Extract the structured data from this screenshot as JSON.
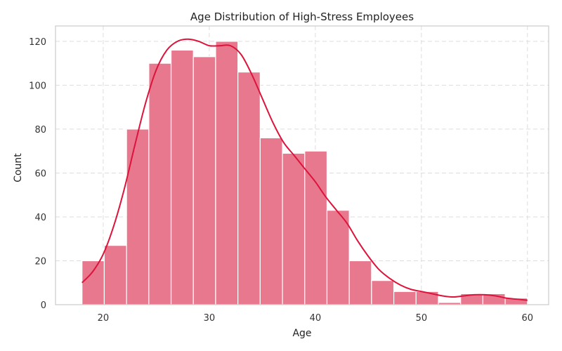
{
  "chart_data": {
    "type": "bar",
    "title": "Age Distribution of High-Stress Employees",
    "xlabel": "Age",
    "ylabel": "Count",
    "xlim": [
      15.5,
      62
    ],
    "ylim": [
      0,
      127
    ],
    "x_ticks": [
      20,
      30,
      40,
      50,
      60
    ],
    "y_ticks": [
      0,
      20,
      40,
      60,
      80,
      100,
      120
    ],
    "grid": true,
    "bin_edges": [
      18,
      20.1,
      22.2,
      24.3,
      26.4,
      28.5,
      30.6,
      32.7,
      34.8,
      36.9,
      39.0,
      41.1,
      43.2,
      45.3,
      47.4,
      49.5,
      51.6,
      53.7,
      55.8,
      57.9,
      60
    ],
    "values": [
      20,
      27,
      80,
      110,
      116,
      113,
      120,
      106,
      76,
      69,
      70,
      43,
      20,
      11,
      6,
      6,
      1,
      5,
      5,
      3
    ],
    "bar_color": "#e8788e",
    "kde_color": "#dc143c",
    "kde": {
      "x": [
        18,
        19,
        20,
        21,
        22,
        23,
        24,
        25,
        26,
        27,
        28,
        29,
        30,
        31,
        32,
        33,
        34,
        35,
        36,
        37,
        38,
        39,
        40,
        41,
        42,
        43,
        44,
        45,
        46,
        47,
        48,
        49,
        50,
        51,
        52,
        53,
        54,
        55,
        56,
        57,
        58,
        59,
        60
      ],
      "y": [
        10,
        15,
        23,
        36,
        53,
        73,
        92,
        107,
        116,
        120,
        121,
        120,
        118,
        118,
        118,
        114,
        105,
        94,
        83,
        74,
        68,
        62,
        56,
        49,
        43,
        37,
        29,
        22,
        16,
        12,
        9,
        7,
        6,
        5,
        4,
        3.5,
        4,
        4.5,
        4.5,
        4,
        3,
        2.5,
        2
      ]
    }
  }
}
